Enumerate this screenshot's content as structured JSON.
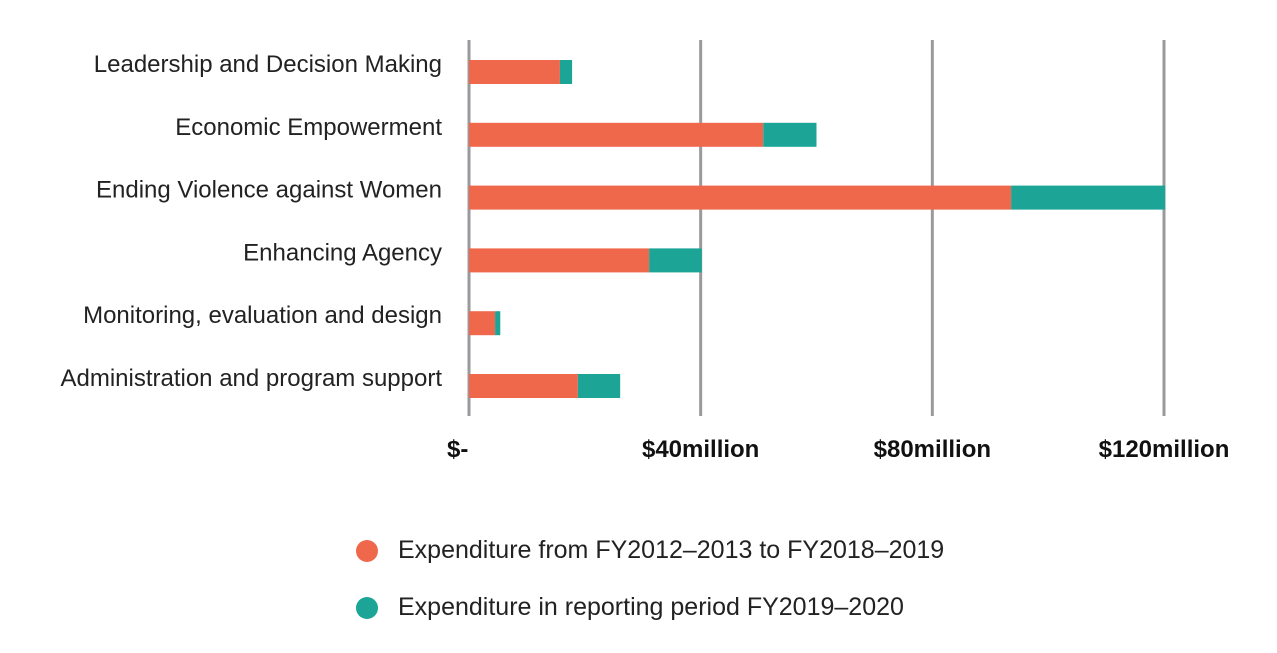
{
  "chart_data": {
    "type": "bar",
    "orientation": "horizontal",
    "stacked": true,
    "categories": [
      "Leadership and Decision Making",
      "Economic Empowerment",
      "Ending Violence against Women",
      "Enhancing Agency",
      "Monitoring, evaluation and design",
      "Administration and program support"
    ],
    "series": [
      {
        "name": "Expenditure from FY2012–2013 to FY2018–2019",
        "color": "#f0684c",
        "values": [
          15.7,
          50.8,
          93.6,
          31.1,
          4.5,
          18.8
        ]
      },
      {
        "name": "Expenditure in reporting period FY2019–2020",
        "color": "#1ca596",
        "values": [
          2.1,
          9.2,
          26.6,
          9.1,
          0.9,
          7.3
        ]
      }
    ],
    "xlim": [
      0,
      120
    ],
    "xticks": [
      0,
      40,
      80,
      120
    ],
    "xtick_labels": [
      "$-",
      "$40million",
      "$80million",
      "$120million"
    ],
    "grid": true,
    "legend_position": "bottom",
    "title": "",
    "xlabel": "",
    "ylabel": ""
  }
}
